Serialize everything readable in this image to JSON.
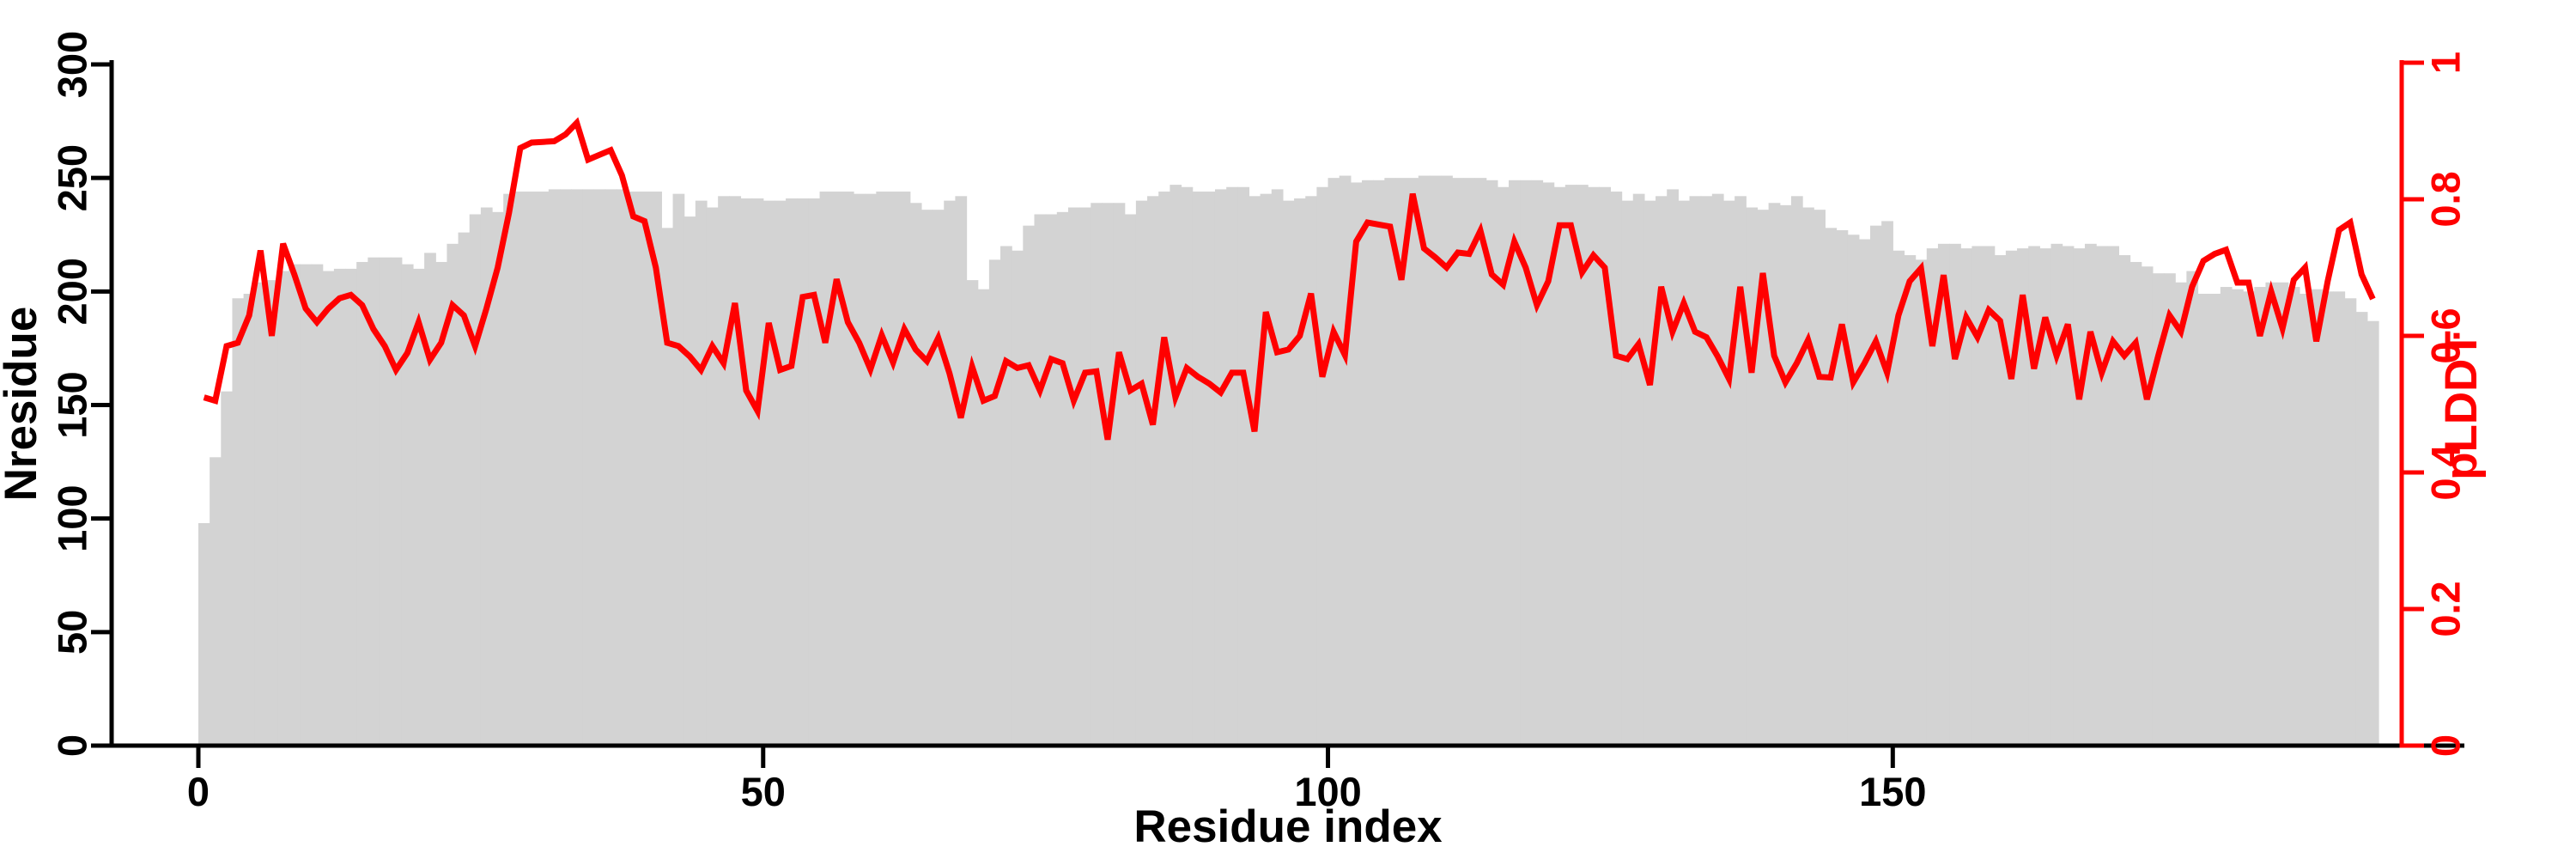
{
  "figure": {
    "xlabel": "Residue index",
    "ylabel_left": "Nresidue",
    "ylabel_right": "pLDDT"
  },
  "colors": {
    "bar_fill": "#d3d3d3",
    "line_color": "#ff0000",
    "axis_color": "#000000",
    "right_axis_color": "#ff0000",
    "background": "#ffffff"
  },
  "chart_data": {
    "type": "bar",
    "subtype": "dual-axis bar+line profile",
    "title": "",
    "xlabel": "Residue index",
    "ylabel_left": "Nresidue",
    "ylabel_right": "pLDDT",
    "xlim": [
      0,
      193
    ],
    "ylim_left": [
      0,
      300
    ],
    "ylim_right": [
      0,
      1
    ],
    "grid": false,
    "legend": "none",
    "n_residues": 193,
    "x_tick_values": [
      0,
      50,
      100,
      150
    ],
    "x_tick_labels": [
      "0",
      "50",
      "100",
      "150"
    ],
    "left_tick_values": [
      0,
      50,
      100,
      150,
      200,
      250,
      300
    ],
    "left_tick_labels": [
      "0",
      "50",
      "100",
      "150",
      "200",
      "250",
      "300"
    ],
    "right_tick_values": [
      0,
      0.2,
      0.4,
      0.6,
      0.8,
      1
    ],
    "right_tick_labels": [
      "0",
      "0.2",
      "0.4",
      "0.6",
      "0.8",
      "1"
    ],
    "series": [
      {
        "name": "Nresidue",
        "type": "bar",
        "axis": "left",
        "color": "#d3d3d3",
        "values": [
          98,
          127,
          156,
          197,
          199,
          204,
          205,
          209,
          212,
          212,
          212,
          209,
          210,
          210,
          213,
          215,
          215,
          215,
          212,
          210,
          217,
          213,
          221,
          226,
          234,
          237,
          235,
          243,
          244,
          244,
          244,
          245,
          245,
          245,
          245,
          245,
          245,
          245,
          244,
          244,
          244,
          228,
          243,
          233,
          240,
          237,
          242,
          242,
          241,
          241,
          240,
          240,
          241,
          241,
          241,
          244,
          244,
          244,
          243,
          243,
          244,
          244,
          244,
          239,
          236,
          236,
          240,
          242,
          205,
          201,
          214,
          220,
          218,
          229,
          234,
          234,
          235,
          237,
          237,
          239,
          239,
          239,
          234,
          240,
          242,
          244,
          247,
          246,
          244,
          244,
          245,
          246,
          246,
          242,
          243,
          245,
          240,
          241,
          242,
          246,
          250,
          251,
          248,
          249,
          249,
          250,
          250,
          250,
          251,
          251,
          251,
          250,
          250,
          250,
          249,
          246,
          249,
          249,
          249,
          248,
          246,
          247,
          247,
          246,
          246,
          244,
          240,
          243,
          240,
          242,
          245,
          240,
          242,
          242,
          243,
          240,
          242,
          237,
          236,
          239,
          238,
          242,
          237,
          236,
          228,
          227,
          225,
          223,
          229,
          231,
          218,
          216,
          214,
          219,
          221,
          221,
          219,
          220,
          220,
          216,
          218,
          219,
          220,
          219,
          221,
          220,
          219,
          221,
          220,
          220,
          216,
          213,
          211,
          208,
          208,
          204,
          209,
          199,
          199,
          202,
          201,
          200,
          202,
          204,
          204,
          202,
          199,
          201,
          200,
          200,
          197,
          191,
          187
        ]
      },
      {
        "name": "pLDDT",
        "type": "line",
        "axis": "right",
        "color": "#ff0000",
        "values": [
          0.51,
          0.505,
          0.585,
          0.59,
          0.63,
          0.725,
          0.6,
          0.735,
          0.69,
          0.64,
          0.62,
          0.64,
          0.655,
          0.66,
          0.645,
          0.61,
          0.585,
          0.55,
          0.575,
          0.62,
          0.565,
          0.59,
          0.645,
          0.63,
          0.585,
          0.64,
          0.7,
          0.78,
          0.875,
          0.883,
          0.884,
          0.885,
          0.895,
          0.912,
          0.858,
          0.865,
          0.872,
          0.835,
          0.775,
          0.768,
          0.7,
          0.59,
          0.585,
          0.57,
          0.55,
          0.585,
          0.56,
          0.648,
          0.52,
          0.49,
          0.619,
          0.55,
          0.556,
          0.657,
          0.66,
          0.59,
          0.683,
          0.62,
          0.59,
          0.551,
          0.601,
          0.561,
          0.61,
          0.58,
          0.563,
          0.597,
          0.545,
          0.48,
          0.555,
          0.505,
          0.512,
          0.563,
          0.553,
          0.557,
          0.52,
          0.566,
          0.56,
          0.505,
          0.546,
          0.548,
          0.448,
          0.576,
          0.52,
          0.53,
          0.47,
          0.598,
          0.51,
          0.553,
          0.54,
          0.53,
          0.517,
          0.546,
          0.546,
          0.46,
          0.635,
          0.576,
          0.58,
          0.6,
          0.662,
          0.54,
          0.606,
          0.572,
          0.738,
          0.766,
          0.763,
          0.76,
          0.682,
          0.808,
          0.728,
          0.715,
          0.7,
          0.722,
          0.72,
          0.754,
          0.69,
          0.675,
          0.738,
          0.7,
          0.645,
          0.68,
          0.762,
          0.762,
          0.693,
          0.718,
          0.7,
          0.571,
          0.566,
          0.588,
          0.528,
          0.672,
          0.606,
          0.648,
          0.606,
          0.598,
          0.57,
          0.537,
          0.672,
          0.546,
          0.692,
          0.571,
          0.532,
          0.56,
          0.594,
          0.54,
          0.539,
          0.617,
          0.532,
          0.56,
          0.592,
          0.546,
          0.63,
          0.68,
          0.699,
          0.585,
          0.689,
          0.566,
          0.627,
          0.598,
          0.638,
          0.622,
          0.537,
          0.66,
          0.552,
          0.627,
          0.571,
          0.617,
          0.507,
          0.606,
          0.546,
          0.592,
          0.571,
          0.59,
          0.507,
          0.571,
          0.63,
          0.606,
          0.672,
          0.71,
          0.72,
          0.726,
          0.678,
          0.678,
          0.6,
          0.665,
          0.611,
          0.682,
          0.7,
          0.592,
          0.68,
          0.755,
          0.766,
          0.69,
          0.654
        ]
      }
    ]
  }
}
